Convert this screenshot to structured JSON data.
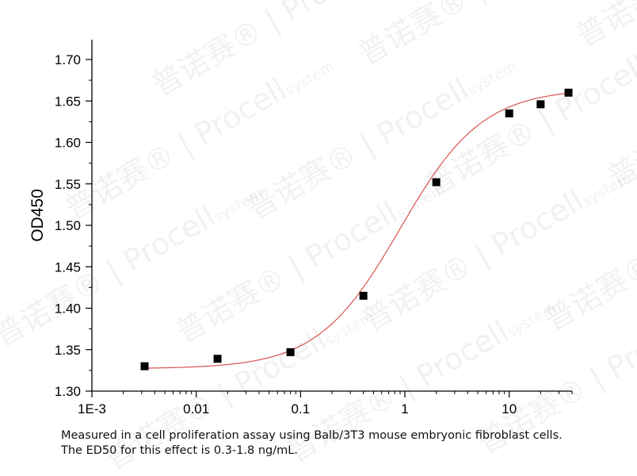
{
  "chart_data": {
    "type": "scatter",
    "xlabel": "",
    "ylabel": "OD450",
    "xscale": "log",
    "xlim": [
      0.001,
      40
    ],
    "ylim": [
      1.3,
      1.7
    ],
    "x_ticks": [
      {
        "value": 0.001,
        "label": "1E-3"
      },
      {
        "value": 0.01,
        "label": "0.01"
      },
      {
        "value": 0.1,
        "label": "0.1"
      },
      {
        "value": 1,
        "label": "1"
      },
      {
        "value": 10,
        "label": "10"
      }
    ],
    "y_ticks": [
      {
        "value": 1.3,
        "label": "1.30"
      },
      {
        "value": 1.35,
        "label": "1.35"
      },
      {
        "value": 1.4,
        "label": "1.40"
      },
      {
        "value": 1.45,
        "label": "1.45"
      },
      {
        "value": 1.5,
        "label": "1.50"
      },
      {
        "value": 1.55,
        "label": "1.55"
      },
      {
        "value": 1.6,
        "label": "1.60"
      },
      {
        "value": 1.65,
        "label": "1.65"
      },
      {
        "value": 1.7,
        "label": "1.70"
      }
    ],
    "series": [
      {
        "marker": "square",
        "color": "#000000",
        "points": [
          {
            "x": 0.0032,
            "y": 1.33
          },
          {
            "x": 0.016,
            "y": 1.339
          },
          {
            "x": 0.08,
            "y": 1.347
          },
          {
            "x": 0.4,
            "y": 1.415
          },
          {
            "x": 2,
            "y": 1.552
          },
          {
            "x": 10,
            "y": 1.635
          },
          {
            "x": 20,
            "y": 1.646
          },
          {
            "x": 37,
            "y": 1.66
          }
        ]
      },
      {
        "type": "line",
        "color": "#d9534f",
        "fit": {
          "model": "4PL",
          "bottom": 1.327,
          "top": 1.665,
          "ec50": 0.9,
          "hill": 1.1
        }
      }
    ],
    "grid": false,
    "legend": "none"
  },
  "caption": {
    "line1": "Measured in a cell proliferation assay using Balb/3T3 mouse embryonic fibroblast cells.",
    "line2": "The ED50 for this effect is 0.3-1.8 ng/mL."
  },
  "watermark": {
    "chinese": "普诺赛®",
    "brand": "Procell",
    "suffix": "system"
  }
}
